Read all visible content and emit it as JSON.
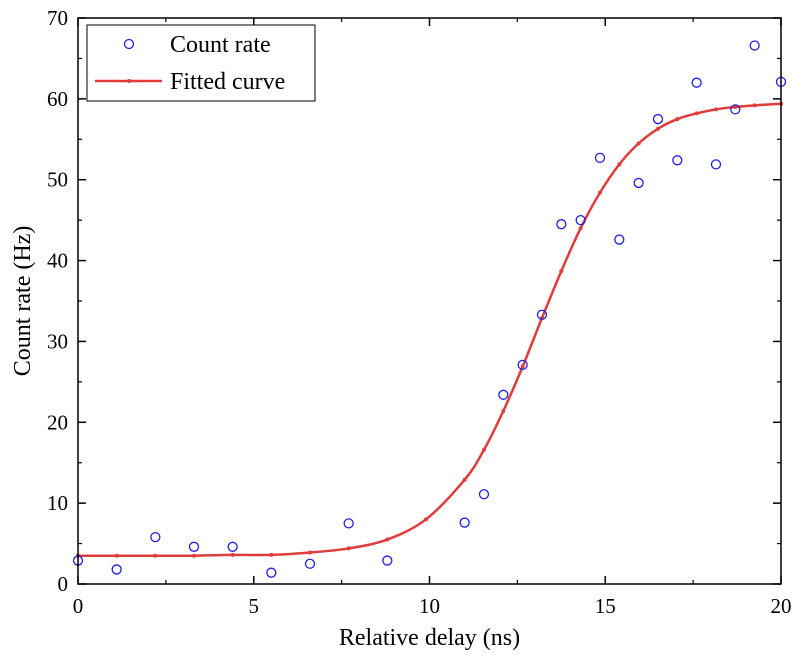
{
  "chart_data": {
    "type": "scatter",
    "title": "",
    "xlabel": "Relative delay (ns)",
    "ylabel": "Count rate (Hz)",
    "xlim": [
      0,
      20
    ],
    "ylim": [
      0,
      70
    ],
    "x_ticks": [
      0,
      5,
      10,
      15,
      20
    ],
    "y_ticks": [
      0,
      10,
      20,
      30,
      40,
      50,
      60,
      70
    ],
    "x_tick_labels": [
      "0",
      "5",
      "10",
      "15",
      "20"
    ],
    "y_tick_labels": [
      "0",
      "10",
      "20",
      "30",
      "40",
      "50",
      "60",
      "70"
    ],
    "grid": false,
    "legend_position": "top-left",
    "series": [
      {
        "name": "Count rate",
        "kind": "scatter",
        "marker": "open-circle",
        "color": "#1f1fe6",
        "x": [
          0,
          1.1,
          2.2,
          3.3,
          4.4,
          5.5,
          6.6,
          7.7,
          8.8,
          11.0,
          11.55,
          12.1,
          12.65,
          13.2,
          13.75,
          14.3,
          14.85,
          15.4,
          15.95,
          16.5,
          17.05,
          17.6,
          18.15,
          18.7,
          19.25,
          20.0
        ],
        "y": [
          2.9,
          1.8,
          5.8,
          4.6,
          4.6,
          1.4,
          2.5,
          7.5,
          2.9,
          7.6,
          11.1,
          23.4,
          27.1,
          33.3,
          44.5,
          45.0,
          52.7,
          42.6,
          49.6,
          57.5,
          52.4,
          62.0,
          51.9,
          58.7,
          66.6,
          62.1
        ]
      },
      {
        "name": "Fitted curve",
        "kind": "line",
        "marker": "small-dot",
        "color": "#e03c3c",
        "x": [
          0,
          1.1,
          2.2,
          3.3,
          4.4,
          5.5,
          6.6,
          7.7,
          8.8,
          9.9,
          11.0,
          11.55,
          12.1,
          12.65,
          13.2,
          13.75,
          14.3,
          14.85,
          15.4,
          15.95,
          16.5,
          17.05,
          17.6,
          18.15,
          18.7,
          19.25,
          20.0
        ],
        "y": [
          3.5,
          3.5,
          3.5,
          3.5,
          3.6,
          3.6,
          3.9,
          4.4,
          5.5,
          8.0,
          12.9,
          16.6,
          21.4,
          26.9,
          32.9,
          38.7,
          44.0,
          48.4,
          51.9,
          54.5,
          56.3,
          57.5,
          58.2,
          58.7,
          59.0,
          59.2,
          59.4
        ]
      }
    ]
  }
}
